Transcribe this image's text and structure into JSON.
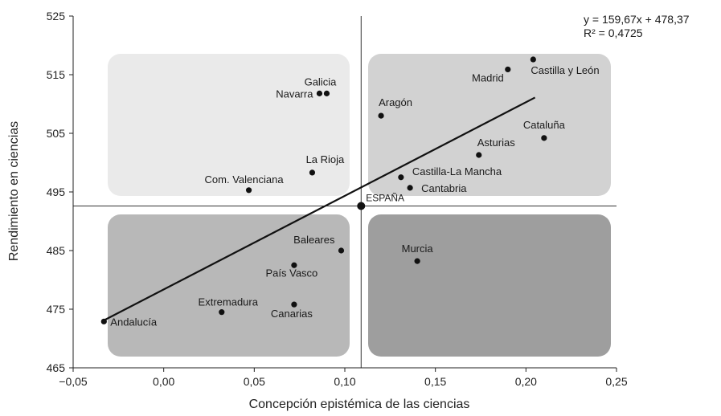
{
  "chart_data": {
    "type": "scatter",
    "xlabel": "Concepción epistémica de las ciencias",
    "ylabel": "Rendimiento en ciencias",
    "xlim": [
      -0.05,
      0.25
    ],
    "ylim": [
      465,
      525
    ],
    "x_ticks": [
      "−0,05",
      "0,00",
      "0,05",
      "0,10",
      "0,15",
      "0,20",
      "0,25"
    ],
    "x_tick_values": [
      -0.05,
      0.0,
      0.05,
      0.1,
      0.15,
      0.2,
      0.25
    ],
    "y_ticks": [
      "465",
      "475",
      "485",
      "495",
      "505",
      "515",
      "525"
    ],
    "y_tick_values": [
      465,
      475,
      485,
      495,
      505,
      515,
      525
    ],
    "grid": false,
    "reference_point": {
      "label": "ESPAÑA",
      "x": 0.109,
      "y": 492.6
    },
    "trendline": {
      "equation": "y = 159,67x + 478,37",
      "r2": "R² = 0,4725",
      "x_range": [
        -0.033,
        0.205
      ]
    },
    "quadrant_colors": {
      "top_left": "#eaeaea",
      "top_right": "#d2d2d2",
      "bottom_left": "#b8b8b8",
      "bottom_right": "#9e9e9e"
    },
    "points": [
      {
        "label": "Andalucía",
        "x": -0.033,
        "y": 472.9
      },
      {
        "label": "Extremadura",
        "x": 0.032,
        "y": 474.5
      },
      {
        "label": "Canarias",
        "x": 0.072,
        "y": 475.8
      },
      {
        "label": "País Vasco",
        "x": 0.072,
        "y": 482.5
      },
      {
        "label": "Baleares",
        "x": 0.098,
        "y": 485.0
      },
      {
        "label": "Murcia",
        "x": 0.14,
        "y": 483.2
      },
      {
        "label": "Com. Valenciana",
        "x": 0.047,
        "y": 495.3
      },
      {
        "label": "La Rioja",
        "x": 0.082,
        "y": 498.3
      },
      {
        "label": "Navarra",
        "x": 0.086,
        "y": 511.8
      },
      {
        "label": "Galicia",
        "x": 0.09,
        "y": 511.8
      },
      {
        "label": "Aragón",
        "x": 0.12,
        "y": 508.0
      },
      {
        "label": "Castilla-La Mancha",
        "x": 0.131,
        "y": 497.5
      },
      {
        "label": "Cantabria",
        "x": 0.136,
        "y": 495.7
      },
      {
        "label": "Asturias",
        "x": 0.174,
        "y": 501.3
      },
      {
        "label": "Cataluña",
        "x": 0.21,
        "y": 504.2
      },
      {
        "label": "Madrid",
        "x": 0.19,
        "y": 515.9
      },
      {
        "label": "Castilla y León",
        "x": 0.204,
        "y": 517.6
      }
    ]
  }
}
